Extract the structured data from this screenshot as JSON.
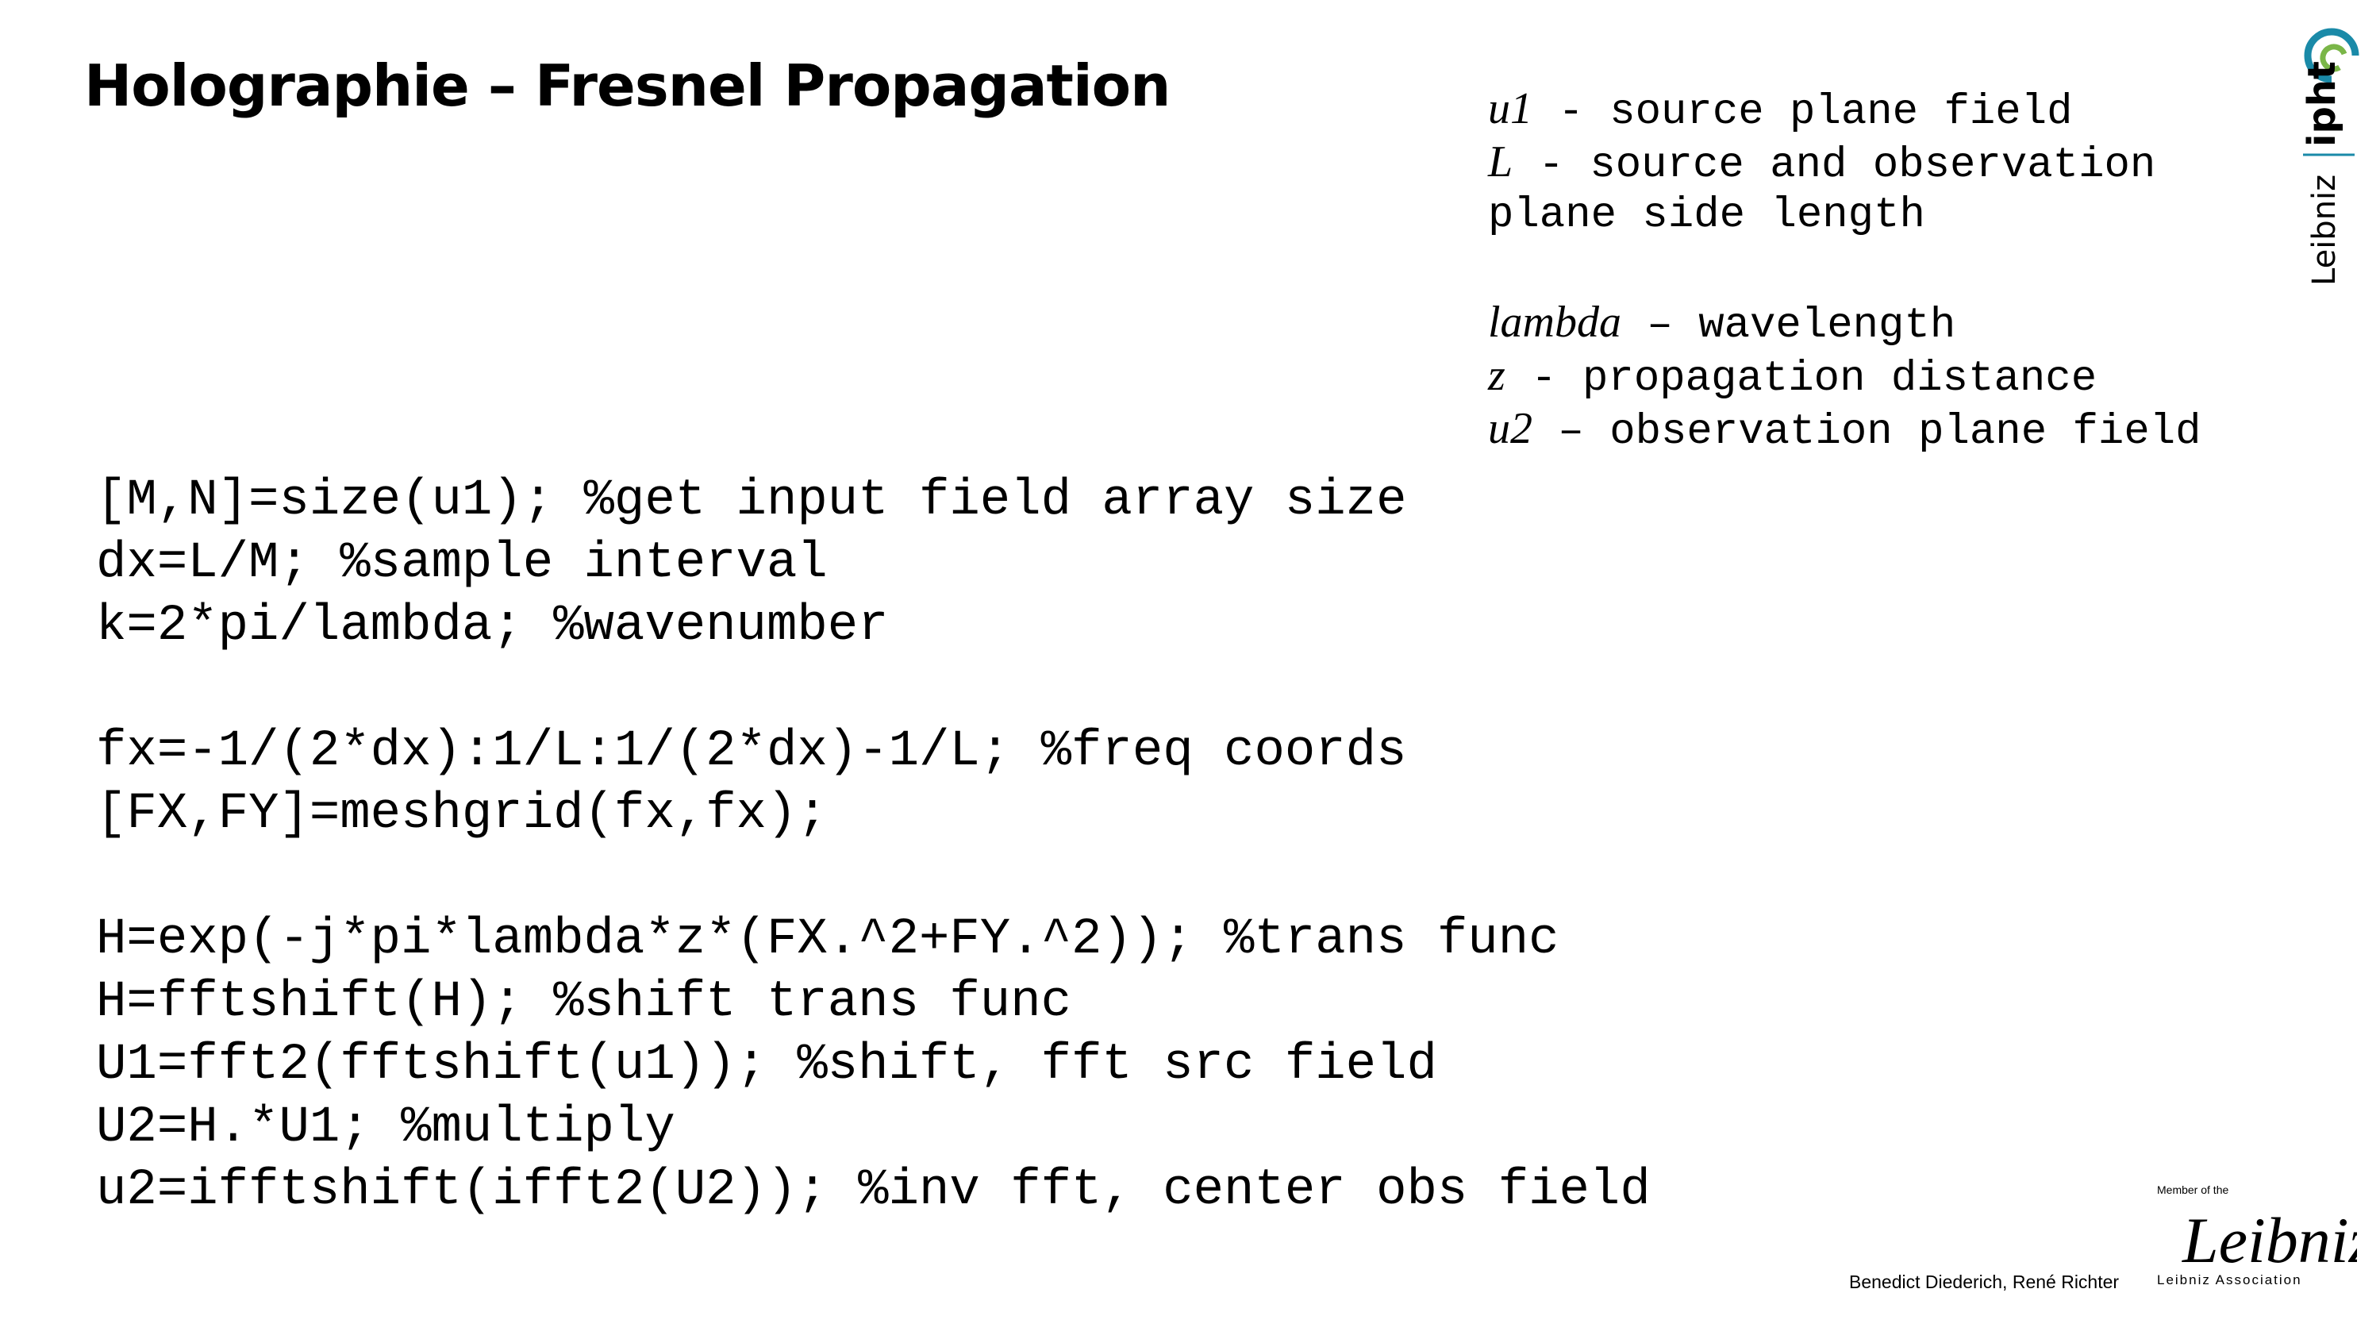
{
  "header": {
    "title": "Holographie – Fresnel Propagation"
  },
  "definitions": [
    [
      {
        "symbol": "u1",
        "text": " - source plane field"
      },
      {
        "symbol": "L",
        "text": " - source and observation"
      },
      {
        "text": "plane side length"
      }
    ],
    [
      {
        "symbol": "lambda",
        "text": " – wavelength"
      },
      {
        "symbol": "z",
        "text": " - propagation distance"
      },
      {
        "symbol": "u2",
        "text": " – observation plane field"
      }
    ]
  ],
  "code": [
    [
      "[M,N]=size(u1); %get input field array size",
      "dx=L/M; %sample interval",
      "k=2*pi/lambda; %wavenumber"
    ],
    [
      "fx=-1/(2*dx):1/L:1/(2*dx)-1/L; %freq coords",
      "[FX,FY]=meshgrid(fx,fx);"
    ],
    [
      "H=exp(-j*pi*lambda*z*(FX.^2+FY.^2)); %trans func",
      "H=fftshift(H); %shift trans func",
      "U1=fft2(fftshift(u1)); %shift, fft src field",
      "U2=H.*U1; %multiply",
      "u2=ifftshift(ifft2(U2)); %inv fft, center obs field"
    ]
  ],
  "footer": {
    "authors": "Benedict Diederich, René Richter"
  },
  "logos": {
    "institute": {
      "prefix": "Leibniz",
      "name": "ipht"
    },
    "association": {
      "member": "Member of the",
      "script": "Leibniz",
      "name": "Leibniz Association"
    }
  }
}
